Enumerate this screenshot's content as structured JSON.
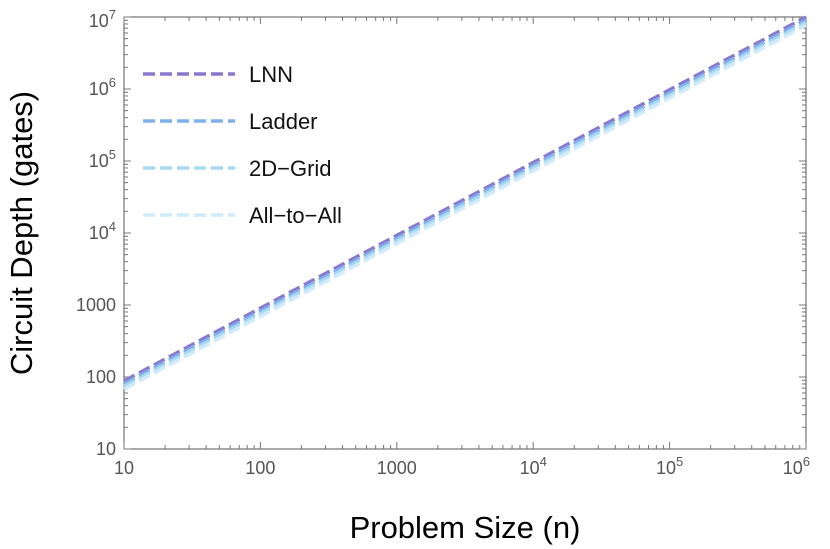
{
  "chart_data": {
    "type": "line",
    "title": "",
    "xlabel": "Problem Size (n)",
    "ylabel": "Circuit Depth (gates)",
    "x_scale": "log",
    "y_scale": "log",
    "xlim": [
      10,
      1000000
    ],
    "ylim": [
      10,
      10000000
    ],
    "grid": false,
    "legend_position": "top-left",
    "x_ticks": [
      {
        "value": 10,
        "base": "10",
        "exp": ""
      },
      {
        "value": 100,
        "base": "100",
        "exp": ""
      },
      {
        "value": 1000,
        "base": "1000",
        "exp": ""
      },
      {
        "value": 10000,
        "base": "10",
        "exp": "4"
      },
      {
        "value": 100000,
        "base": "10",
        "exp": "5"
      },
      {
        "value": 1000000,
        "base": "10",
        "exp": "6"
      }
    ],
    "y_ticks": [
      {
        "value": 10,
        "base": "10",
        "exp": ""
      },
      {
        "value": 100,
        "base": "100",
        "exp": ""
      },
      {
        "value": 1000,
        "base": "1000",
        "exp": ""
      },
      {
        "value": 10000,
        "base": "10",
        "exp": "4"
      },
      {
        "value": 100000,
        "base": "10",
        "exp": "5"
      },
      {
        "value": 1000000,
        "base": "10",
        "exp": "6"
      },
      {
        "value": 10000000,
        "base": "10",
        "exp": "7"
      }
    ],
    "series": [
      {
        "name": "LNN",
        "color": "#8a78cf",
        "style": "dashed",
        "x": [
          10,
          1000000
        ],
        "y": [
          88,
          10000000
        ]
      },
      {
        "name": "Ladder",
        "color": "#7fb0ea",
        "style": "dashed",
        "x": [
          10,
          1000000
        ],
        "y": [
          80,
          9100000
        ]
      },
      {
        "name": "2D−Grid",
        "color": "#a8d8f2",
        "style": "dashed",
        "x": [
          10,
          1000000
        ],
        "y": [
          74,
          8400000
        ]
      },
      {
        "name": "All−to−All",
        "color": "#cfeafa",
        "style": "dashed",
        "x": [
          10,
          1000000
        ],
        "y": [
          68,
          7700000
        ]
      }
    ]
  }
}
